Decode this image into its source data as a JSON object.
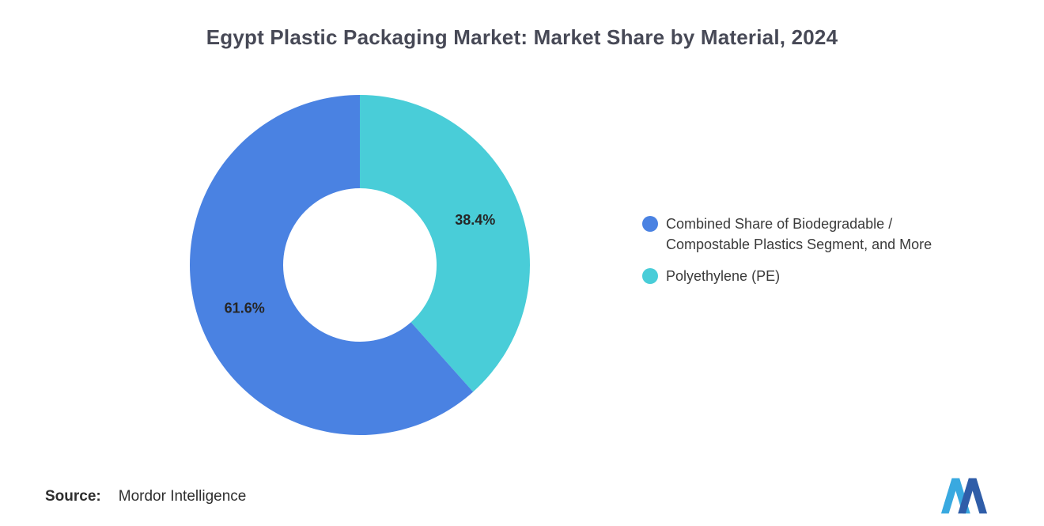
{
  "title": "Egypt Plastic Packaging Market: Market Share by Material, 2024",
  "chart_data": {
    "type": "pie",
    "subtype": "donut",
    "title": "Egypt Plastic Packaging Market: Market Share by Material, 2024",
    "start_angle_deg": 0,
    "direction": "clockwise",
    "inner_radius_ratio": 0.45,
    "legend_position": "right",
    "slices": [
      {
        "label": "Polyethylene (PE)",
        "value": 38.4,
        "data_label": "38.4%",
        "color": "#49CDD8"
      },
      {
        "label": "Combined Share of Biodegradable / Compostable Plastics Segment, and More",
        "value": 61.6,
        "data_label": "61.6%",
        "color": "#4A82E2"
      }
    ]
  },
  "legend": {
    "items": [
      {
        "label": "Combined Share of Biodegradable /\nCompostable Plastics Segment, and More",
        "color": "#4A82E2"
      },
      {
        "label": "Polyethylene (PE)",
        "color": "#49CDD8"
      }
    ]
  },
  "footer": {
    "source_label": "Source:",
    "source_value": "Mordor Intelligence"
  },
  "logo": {
    "name": "mordor-intelligence-logo",
    "color_light": "#39A9E0",
    "color_dark": "#2F5DA8"
  }
}
